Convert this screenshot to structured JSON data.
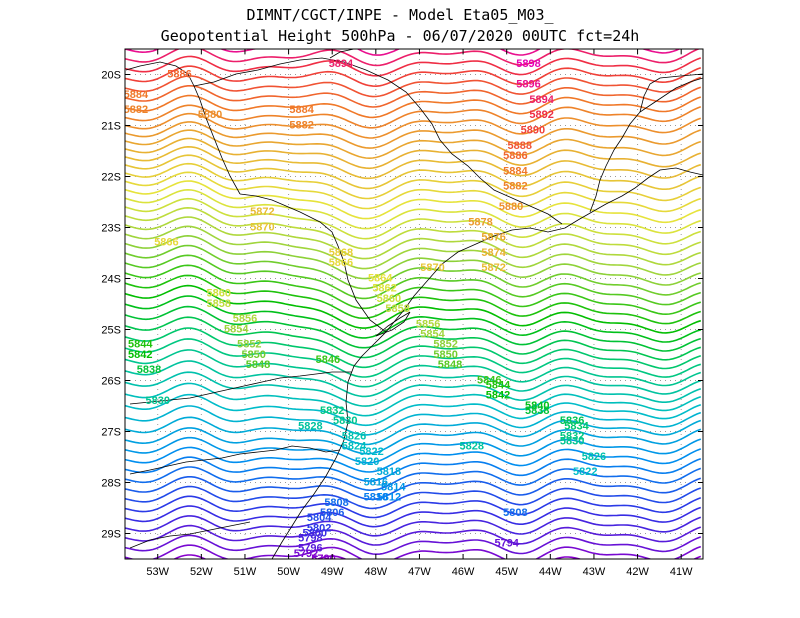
{
  "title": {
    "line1": "DIMNT/CGCT/INPE -  Model Eta05_M03_",
    "line2": "Geopotential Height 500hPa -  06/07/2020 00UTC fct=24h"
  },
  "map": {
    "lon_range": [
      -53.75,
      -40.5
    ],
    "lat_range": [
      -29.5,
      -19.5
    ],
    "lon_ticks": [
      {
        "v": -53,
        "label": "53W"
      },
      {
        "v": -52,
        "label": "52W"
      },
      {
        "v": -51,
        "label": "51W"
      },
      {
        "v": -50,
        "label": "50W"
      },
      {
        "v": -49,
        "label": "49W"
      },
      {
        "v": -48,
        "label": "48W"
      },
      {
        "v": -47,
        "label": "47W"
      },
      {
        "v": -46,
        "label": "46W"
      },
      {
        "v": -45,
        "label": "45W"
      },
      {
        "v": -44,
        "label": "44W"
      },
      {
        "v": -43,
        "label": "43W"
      },
      {
        "v": -42,
        "label": "42W"
      },
      {
        "v": -41,
        "label": "41W"
      }
    ],
    "lat_ticks": [
      {
        "v": -20,
        "label": "20S"
      },
      {
        "v": -21,
        "label": "21S"
      },
      {
        "v": -22,
        "label": "22S"
      },
      {
        "v": -23,
        "label": "23S"
      },
      {
        "v": -24,
        "label": "24S"
      },
      {
        "v": -25,
        "label": "25S"
      },
      {
        "v": -26,
        "label": "26S"
      },
      {
        "v": -27,
        "label": "27S"
      },
      {
        "v": -28,
        "label": "28S"
      },
      {
        "v": -29,
        "label": "29S"
      }
    ],
    "contour_min": 5790,
    "contour_max": 5898,
    "contour_interval": 2,
    "contour_labels": [
      {
        "text": "5898",
        "lon": -44.5,
        "lat": -19.8
      },
      {
        "text": "5896",
        "lon": -44.5,
        "lat": -20.2
      },
      {
        "text": "5894",
        "lon": -48.8,
        "lat": -19.8
      },
      {
        "text": "5894",
        "lon": -44.2,
        "lat": -20.5
      },
      {
        "text": "5892",
        "lon": -44.2,
        "lat": -20.8
      },
      {
        "text": "5890",
        "lon": -44.4,
        "lat": -21.1
      },
      {
        "text": "5888",
        "lon": -44.7,
        "lat": -21.4
      },
      {
        "text": "5886",
        "lon": -52.5,
        "lat": -20.0
      },
      {
        "text": "5886",
        "lon": -44.8,
        "lat": -21.6
      },
      {
        "text": "5884",
        "lon": -53.5,
        "lat": -20.4
      },
      {
        "text": "5884",
        "lon": -49.7,
        "lat": -20.7
      },
      {
        "text": "5884",
        "lon": -44.8,
        "lat": -21.9
      },
      {
        "text": "5882",
        "lon": -53.5,
        "lat": -20.7
      },
      {
        "text": "5882",
        "lon": -49.7,
        "lat": -21.0
      },
      {
        "text": "5882",
        "lon": -44.8,
        "lat": -22.2
      },
      {
        "text": "5880",
        "lon": -51.8,
        "lat": -20.8
      },
      {
        "text": "5880",
        "lon": -44.9,
        "lat": -22.6
      },
      {
        "text": "5878",
        "lon": -45.6,
        "lat": -22.9
      },
      {
        "text": "5876",
        "lon": -45.3,
        "lat": -23.2
      },
      {
        "text": "5874",
        "lon": -45.3,
        "lat": -23.5
      },
      {
        "text": "5872",
        "lon": -50.6,
        "lat": -22.7
      },
      {
        "text": "5872",
        "lon": -45.3,
        "lat": -23.8
      },
      {
        "text": "5870",
        "lon": -50.6,
        "lat": -23.0
      },
      {
        "text": "5870",
        "lon": -46.7,
        "lat": -23.8
      },
      {
        "text": "5868",
        "lon": -48.8,
        "lat": -23.5
      },
      {
        "text": "5866",
        "lon": -52.8,
        "lat": -23.3
      },
      {
        "text": "5866",
        "lon": -48.8,
        "lat": -23.7
      },
      {
        "text": "5864",
        "lon": -47.9,
        "lat": -24.0
      },
      {
        "text": "5862",
        "lon": -47.8,
        "lat": -24.2
      },
      {
        "text": "5860",
        "lon": -51.6,
        "lat": -24.3
      },
      {
        "text": "5860",
        "lon": -47.7,
        "lat": -24.4
      },
      {
        "text": "5858",
        "lon": -51.6,
        "lat": -24.5
      },
      {
        "text": "5858",
        "lon": -47.5,
        "lat": -24.6
      },
      {
        "text": "5856",
        "lon": -51.0,
        "lat": -24.8
      },
      {
        "text": "5856",
        "lon": -46.8,
        "lat": -24.9
      },
      {
        "text": "5854",
        "lon": -51.2,
        "lat": -25.0
      },
      {
        "text": "5854",
        "lon": -46.7,
        "lat": -25.1
      },
      {
        "text": "5852",
        "lon": -50.9,
        "lat": -25.3
      },
      {
        "text": "5852",
        "lon": -46.4,
        "lat": -25.3
      },
      {
        "text": "5850",
        "lon": -50.8,
        "lat": -25.5
      },
      {
        "text": "5850",
        "lon": -46.4,
        "lat": -25.5
      },
      {
        "text": "5848",
        "lon": -50.7,
        "lat": -25.7
      },
      {
        "text": "5848",
        "lon": -46.3,
        "lat": -25.7
      },
      {
        "text": "5846",
        "lon": -49.1,
        "lat": -25.6
      },
      {
        "text": "5846",
        "lon": -45.4,
        "lat": -26.0
      },
      {
        "text": "5844",
        "lon": -53.4,
        "lat": -25.3
      },
      {
        "text": "5844",
        "lon": -45.2,
        "lat": -26.1
      },
      {
        "text": "5842",
        "lon": -53.4,
        "lat": -25.5
      },
      {
        "text": "5842",
        "lon": -45.2,
        "lat": -26.3
      },
      {
        "text": "5840",
        "lon": -44.3,
        "lat": -26.5
      },
      {
        "text": "5838",
        "lon": -53.2,
        "lat": -25.8
      },
      {
        "text": "5838",
        "lon": -44.3,
        "lat": -26.6
      },
      {
        "text": "5836",
        "lon": -43.5,
        "lat": -26.8
      },
      {
        "text": "5834",
        "lon": -43.4,
        "lat": -26.9
      },
      {
        "text": "5832",
        "lon": -49.0,
        "lat": -26.6
      },
      {
        "text": "5832",
        "lon": -43.5,
        "lat": -27.1
      },
      {
        "text": "5830",
        "lon": -53.0,
        "lat": -26.4
      },
      {
        "text": "5830",
        "lon": -48.7,
        "lat": -26.8
      },
      {
        "text": "5830",
        "lon": -43.5,
        "lat": -27.2
      },
      {
        "text": "5828",
        "lon": -49.5,
        "lat": -26.9
      },
      {
        "text": "5828",
        "lon": -45.8,
        "lat": -27.3
      },
      {
        "text": "5826",
        "lon": -48.5,
        "lat": -27.1
      },
      {
        "text": "5826",
        "lon": -43.0,
        "lat": -27.5
      },
      {
        "text": "5824",
        "lon": -48.5,
        "lat": -27.3
      },
      {
        "text": "5822",
        "lon": -48.1,
        "lat": -27.4
      },
      {
        "text": "5822",
        "lon": -43.2,
        "lat": -27.8
      },
      {
        "text": "5820",
        "lon": -48.2,
        "lat": -27.6
      },
      {
        "text": "5818",
        "lon": -47.7,
        "lat": -27.8
      },
      {
        "text": "5816",
        "lon": -48.0,
        "lat": -28.0
      },
      {
        "text": "5814",
        "lon": -47.6,
        "lat": -28.1
      },
      {
        "text": "5812",
        "lon": -47.7,
        "lat": -28.3
      },
      {
        "text": "5810",
        "lon": -48.0,
        "lat": -28.3
      },
      {
        "text": "5808",
        "lon": -48.9,
        "lat": -28.4
      },
      {
        "text": "5808",
        "lon": -44.8,
        "lat": -28.6
      },
      {
        "text": "5806",
        "lon": -49.0,
        "lat": -28.6
      },
      {
        "text": "5804",
        "lon": -49.3,
        "lat": -28.7
      },
      {
        "text": "5802",
        "lon": -49.3,
        "lat": -28.9
      },
      {
        "text": "5800",
        "lon": -49.4,
        "lat": -29.0
      },
      {
        "text": "5798",
        "lon": -49.5,
        "lat": -29.1
      },
      {
        "text": "5796",
        "lon": -49.5,
        "lat": -29.3
      },
      {
        "text": "5794",
        "lon": -45.0,
        "lat": -29.2
      },
      {
        "text": "5792",
        "lon": -49.6,
        "lat": -29.4
      },
      {
        "text": "5790",
        "lon": -49.2,
        "lat": -29.5
      }
    ]
  },
  "colors": {
    "frame": "#000000",
    "grid": "#9a9a9a",
    "coast": "#000000"
  }
}
